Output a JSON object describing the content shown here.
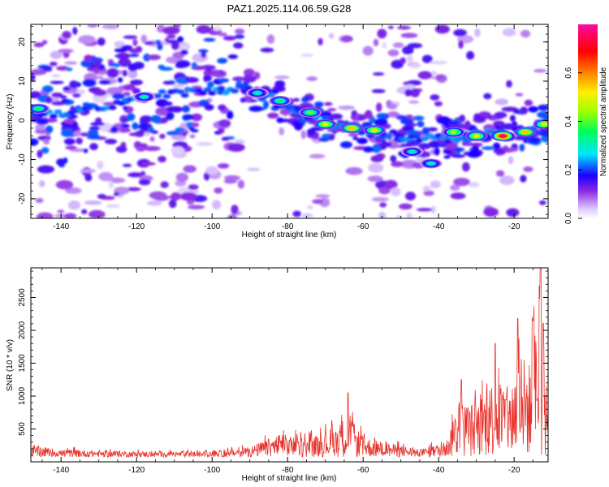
{
  "title": "PAZ1.2025.114.06.59.G28",
  "chart_data": [
    {
      "type": "heatmap",
      "xlabel": "Height of straight line (km)",
      "ylabel": "Frequency (Hz)",
      "xlim": [
        -148,
        -11
      ],
      "ylim": [
        -25,
        24.5
      ],
      "xticks": [
        -140,
        -120,
        -100,
        -80,
        -60,
        -40,
        -20
      ],
      "yticks": [
        -20,
        -10,
        0,
        10,
        20
      ],
      "colorbar": {
        "label": "Normalized spectral amplitude",
        "range": [
          0,
          0.8
        ],
        "ticks": [
          0.0,
          0.2,
          0.4,
          0.6
        ],
        "colormap": "rainbow (white→violet→blue→cyan→green→yellow→red→pink)"
      },
      "ridge": [
        {
          "x": -146,
          "y": 2
        },
        {
          "x": -140,
          "y": 2
        },
        {
          "x": -128,
          "y": 3
        },
        {
          "x": -118,
          "y": 6
        },
        {
          "x": -108,
          "y": 7
        },
        {
          "x": -98,
          "y": 8
        },
        {
          "x": -92,
          "y": 8
        },
        {
          "x": -86,
          "y": 6
        },
        {
          "x": -80,
          "y": 4
        },
        {
          "x": -74,
          "y": 1
        },
        {
          "x": -68,
          "y": -1
        },
        {
          "x": -62,
          "y": -2
        },
        {
          "x": -56,
          "y": -3
        },
        {
          "x": -50,
          "y": -4
        },
        {
          "x": -44,
          "y": -4
        },
        {
          "x": -38,
          "y": -4.5
        },
        {
          "x": -32,
          "y": -4
        },
        {
          "x": -26,
          "y": -3.5
        },
        {
          "x": -20,
          "y": -3
        },
        {
          "x": -14,
          "y": -1.5
        },
        {
          "x": -11,
          "y": 0
        }
      ],
      "hotspots": [
        {
          "x": -146,
          "y": 3,
          "amp": 0.35
        },
        {
          "x": -118,
          "y": 6,
          "amp": 0.3
        },
        {
          "x": -88,
          "y": 7,
          "amp": 0.3
        },
        {
          "x": -82,
          "y": 5,
          "amp": 0.35
        },
        {
          "x": -74,
          "y": 2,
          "amp": 0.4
        },
        {
          "x": -70,
          "y": -1,
          "amp": 0.5
        },
        {
          "x": -63,
          "y": -2,
          "amp": 0.55
        },
        {
          "x": -57,
          "y": -2.5,
          "amp": 0.5
        },
        {
          "x": -47,
          "y": -8,
          "amp": 0.3
        },
        {
          "x": -42,
          "y": -11,
          "amp": 0.3
        },
        {
          "x": -36,
          "y": -3,
          "amp": 0.45
        },
        {
          "x": -30,
          "y": -4,
          "amp": 0.5
        },
        {
          "x": -23,
          "y": -4,
          "amp": 0.75
        },
        {
          "x": -17,
          "y": -3,
          "amp": 0.55
        },
        {
          "x": -12,
          "y": -1,
          "amp": 0.5
        }
      ]
    },
    {
      "type": "line",
      "xlabel": "Height of straight line (km)",
      "ylabel": "SNR (10 * v/v)",
      "xlim": [
        -148,
        -11
      ],
      "ylim": [
        0,
        2950
      ],
      "xticks": [
        -140,
        -120,
        -100,
        -80,
        -60,
        -40,
        -20
      ],
      "yticks": [
        500,
        1000,
        1500,
        2000,
        2500
      ],
      "series": [
        {
          "color": "#e8312a",
          "envelope": [
            {
              "x": -148,
              "y": 250
            },
            {
              "x": -140,
              "y": 180
            },
            {
              "x": -120,
              "y": 150
            },
            {
              "x": -100,
              "y": 150
            },
            {
              "x": -90,
              "y": 220
            },
            {
              "x": -82,
              "y": 420
            },
            {
              "x": -75,
              "y": 350
            },
            {
              "x": -70,
              "y": 450
            },
            {
              "x": -64,
              "y": 700
            },
            {
              "x": -60,
              "y": 380
            },
            {
              "x": -55,
              "y": 300
            },
            {
              "x": -45,
              "y": 180
            },
            {
              "x": -38,
              "y": 300
            },
            {
              "x": -35,
              "y": 900
            },
            {
              "x": -30,
              "y": 900
            },
            {
              "x": -25,
              "y": 1300
            },
            {
              "x": -21,
              "y": 1100
            },
            {
              "x": -19,
              "y": 1700
            },
            {
              "x": -16,
              "y": 1500
            },
            {
              "x": -13,
              "y": 2500
            },
            {
              "x": -11,
              "y": 600
            }
          ],
          "peaks": [
            {
              "x": -64,
              "y": 1050
            },
            {
              "x": -34,
              "y": 1250
            },
            {
              "x": -25,
              "y": 1800
            },
            {
              "x": -19,
              "y": 2180
            },
            {
              "x": -15,
              "y": 2150
            },
            {
              "x": -13,
              "y": 2950
            }
          ]
        }
      ]
    }
  ]
}
